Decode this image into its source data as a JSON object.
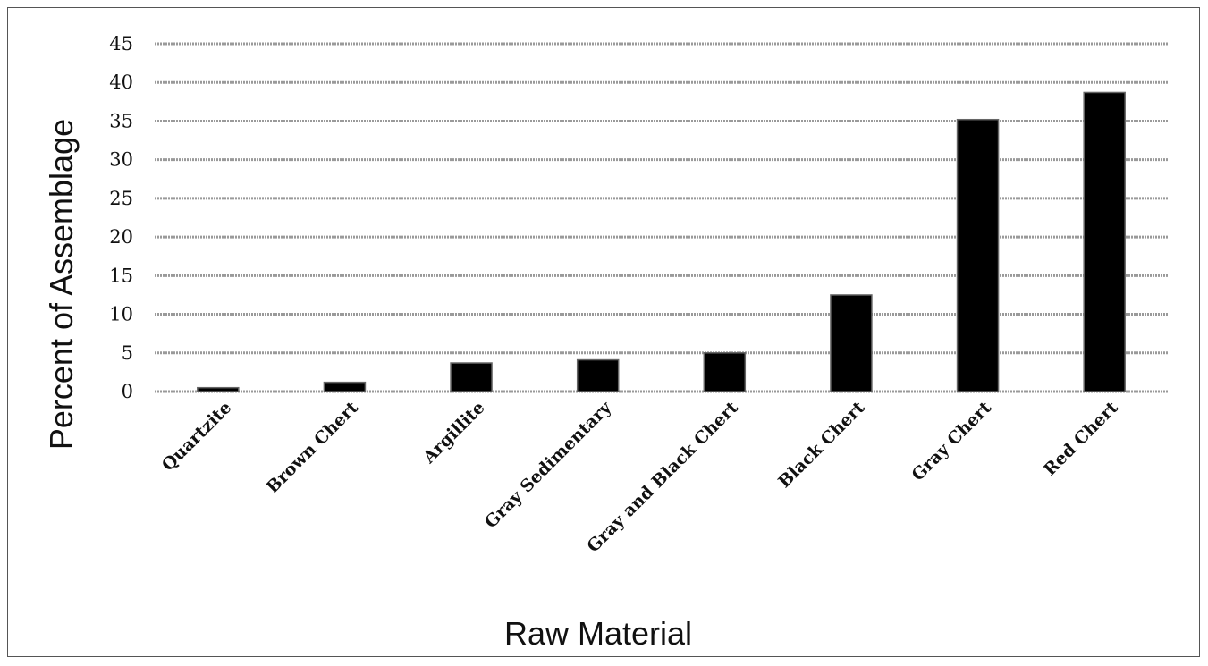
{
  "chart_data": {
    "type": "bar",
    "title": "",
    "xlabel": "Raw Material",
    "ylabel": "Percent of Assemblage",
    "categories": [
      "Quartzite",
      "Brown Chert",
      "Argillite",
      "Gray Sedimentary",
      "Gray and Black Chert",
      "Black Chert",
      "Gray Chert",
      "Red Chert"
    ],
    "values": [
      0.5,
      1.2,
      3.7,
      4.1,
      5.0,
      12.5,
      35.2,
      38.7
    ],
    "ylim": [
      0,
      45
    ],
    "yticks": [
      0,
      5,
      10,
      15,
      20,
      25,
      30,
      35,
      40,
      45
    ],
    "grid": true,
    "legend": "none",
    "colors": {
      "bar": "#000000",
      "grid": "#9a9a9a",
      "axis": "#9a9a9a"
    }
  }
}
